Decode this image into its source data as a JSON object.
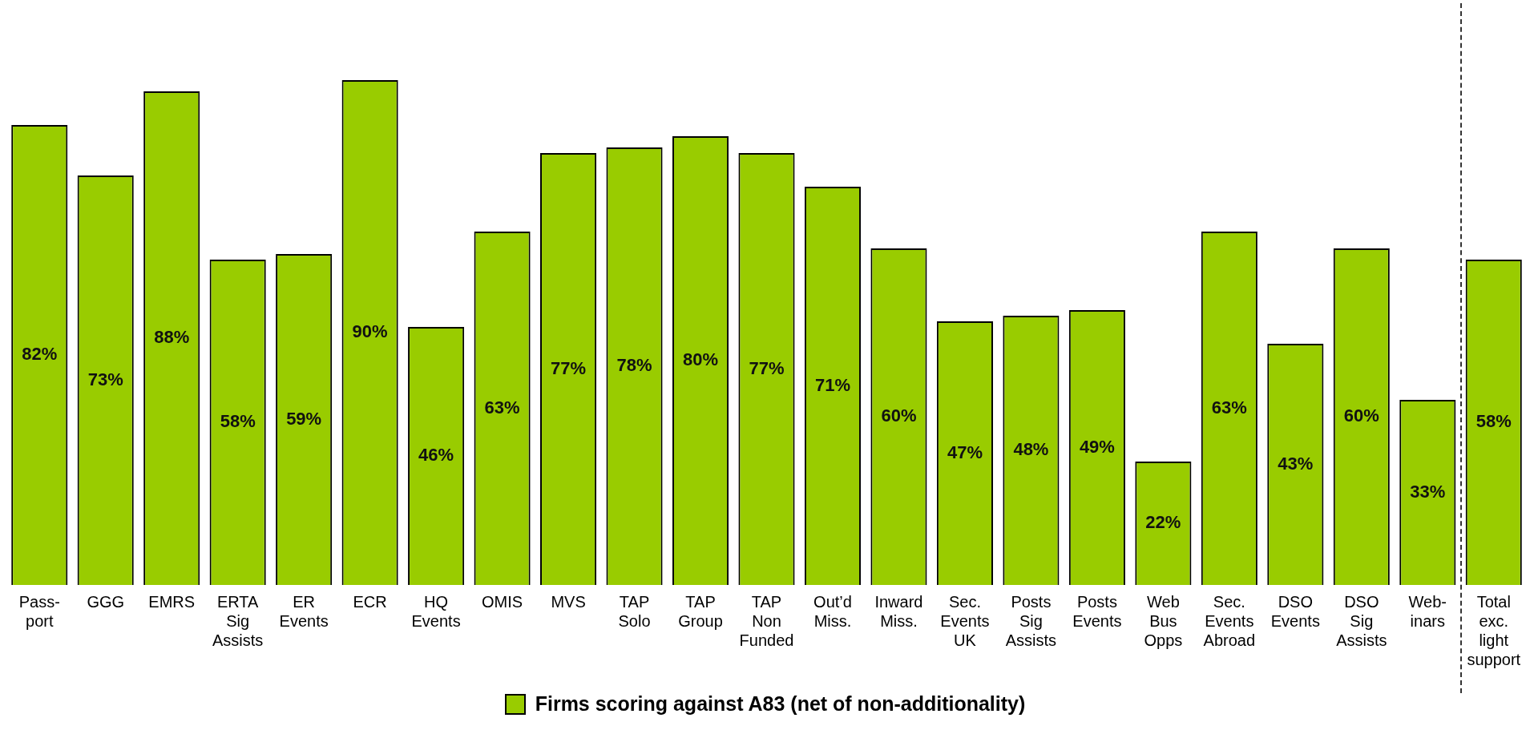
{
  "chart_data": {
    "type": "bar",
    "categories": [
      "Pass-\nport",
      "GGG",
      "EMRS",
      "ERTA\nSig\nAssists",
      "ER\nEvents",
      "ECR",
      "HQ\nEvents",
      "OMIS",
      "MVS",
      "TAP\nSolo",
      "TAP\nGroup",
      "TAP\nNon\nFunded",
      "Out’d\nMiss.",
      "Inward\nMiss.",
      "Sec.\nEvents\nUK",
      "Posts\nSig\nAssists",
      "Posts\nEvents",
      "Web\nBus\nOpps",
      "Sec.\nEvents\nAbroad",
      "DSO\nEvents",
      "DSO\nSig\nAssists",
      "Web-\ninars",
      "Total\nexc.\nlight\nsupport"
    ],
    "series": [
      {
        "name": "Firms scoring against A83 (net of non-additionality)",
        "color": "#99cc00",
        "values": [
          82,
          73,
          88,
          58,
          59,
          90,
          46,
          63,
          77,
          78,
          80,
          77,
          71,
          60,
          47,
          48,
          49,
          22,
          63,
          43,
          60,
          33,
          58
        ],
        "value_labels": [
          "82%",
          "73%",
          "88%",
          "58%",
          "59%",
          "90%",
          "46%",
          "63%",
          "77%",
          "78%",
          "80%",
          "77%",
          "71%",
          "60%",
          "47%",
          "48%",
          "49%",
          "22%",
          "63%",
          "43%",
          "60%",
          "33%",
          "58%"
        ]
      }
    ],
    "tick_labels": "x",
    "grid": false,
    "legend": "bottom"
  }
}
